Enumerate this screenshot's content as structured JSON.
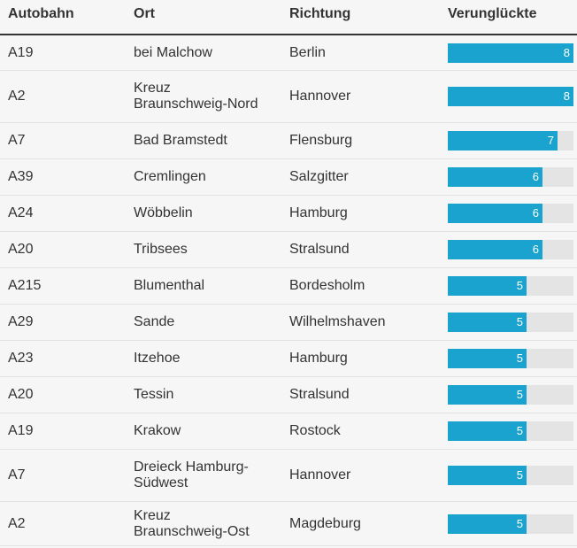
{
  "headers": {
    "autobahn": "Autobahn",
    "ort": "Ort",
    "richtung": "Richtung",
    "verunglueckte": "Verunglückte"
  },
  "bar_max": 8,
  "bar_color": "#1ba3cf",
  "rows": [
    {
      "autobahn": "A19",
      "ort": "bei Malchow",
      "richtung": "Berlin",
      "value": 8
    },
    {
      "autobahn": "A2",
      "ort": "Kreuz Braunschweig-Nord",
      "richtung": "Hannover",
      "value": 8
    },
    {
      "autobahn": "A7",
      "ort": "Bad Bramstedt",
      "richtung": "Flensburg",
      "value": 7
    },
    {
      "autobahn": "A39",
      "ort": "Cremlingen",
      "richtung": "Salzgitter",
      "value": 6
    },
    {
      "autobahn": "A24",
      "ort": "Wöbbelin",
      "richtung": "Hamburg",
      "value": 6
    },
    {
      "autobahn": "A20",
      "ort": "Tribsees",
      "richtung": "Stralsund",
      "value": 6
    },
    {
      "autobahn": "A215",
      "ort": "Blumenthal",
      "richtung": "Bordesholm",
      "value": 5
    },
    {
      "autobahn": "A29",
      "ort": "Sande",
      "richtung": "Wilhelmshaven",
      "value": 5
    },
    {
      "autobahn": "A23",
      "ort": "Itzehoe",
      "richtung": "Hamburg",
      "value": 5
    },
    {
      "autobahn": "A20",
      "ort": "Tessin",
      "richtung": "Stralsund",
      "value": 5
    },
    {
      "autobahn": "A19",
      "ort": "Krakow",
      "richtung": "Rostock",
      "value": 5
    },
    {
      "autobahn": "A7",
      "ort": "Dreieck Hamburg-Südwest",
      "richtung": "Hannover",
      "value": 5
    },
    {
      "autobahn": "A2",
      "ort": "Kreuz Braunschweig-Ost",
      "richtung": "Magdeburg",
      "value": 5
    }
  ]
}
